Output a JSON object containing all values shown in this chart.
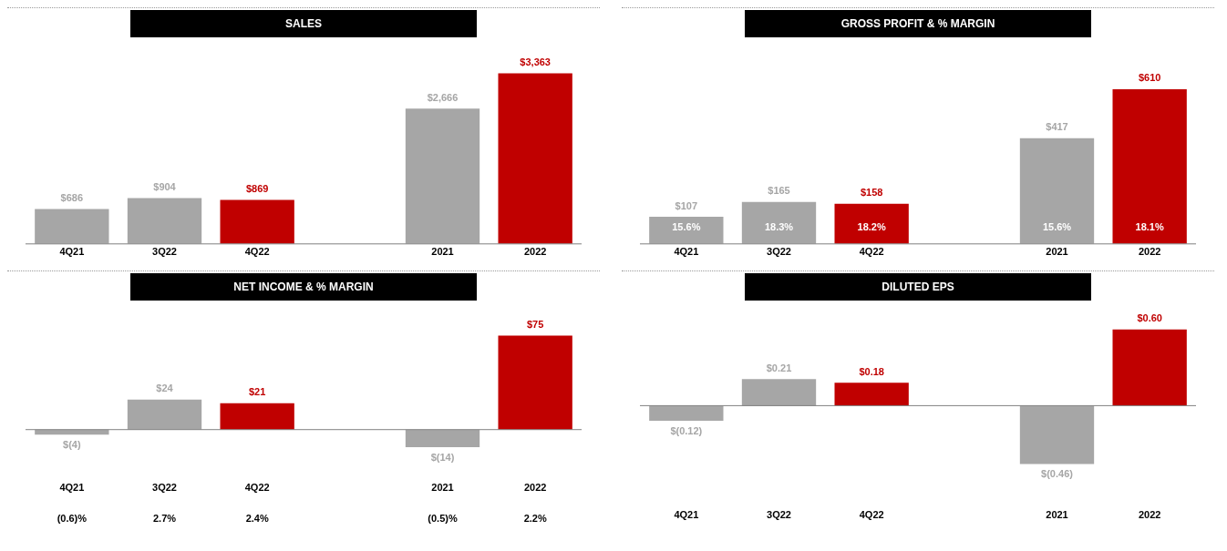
{
  "chart_data": [
    {
      "type": "bar",
      "title": "SALES",
      "categories": [
        "4Q21",
        "3Q22",
        "4Q22",
        null,
        "2021",
        "2022"
      ],
      "values": [
        686,
        904,
        869,
        null,
        2666,
        3363
      ],
      "colors": [
        "#a6a6a6",
        "#a6a6a6",
        "#c00000",
        "#a6a6a6",
        "#a6a6a6",
        "#c00000"
      ],
      "value_labels": [
        "$686",
        "$904",
        "$869",
        null,
        "$2,666",
        "$3,363"
      ],
      "grid": false,
      "legend": false,
      "tick_labels": "x"
    },
    {
      "type": "bar",
      "title": "GROSS PROFIT & % MARGIN",
      "categories": [
        "4Q21",
        "3Q22",
        "4Q22",
        null,
        "2021",
        "2022"
      ],
      "values": [
        107,
        165,
        158,
        null,
        417,
        610
      ],
      "colors": [
        "#a6a6a6",
        "#a6a6a6",
        "#c00000",
        "#a6a6a6",
        "#a6a6a6",
        "#c00000"
      ],
      "value_labels": [
        "$107",
        "$165",
        "$158",
        null,
        "$417",
        "$610"
      ],
      "annotations": [
        "15.6%",
        "18.3%",
        "18.2%",
        "15.6%",
        "18.1%"
      ],
      "grid": false,
      "legend": false,
      "tick_labels": "x"
    },
    {
      "type": "bar",
      "title": "NET INCOME & % MARGIN",
      "categories": [
        "4Q21",
        "3Q22",
        "4Q22",
        null,
        "2021",
        "2022"
      ],
      "values": [
        -4,
        24,
        21,
        null,
        -14,
        75
      ],
      "colors": [
        "#a6a6a6",
        "#a6a6a6",
        "#c00000",
        "#a6a6a6",
        "#a6a6a6",
        "#c00000"
      ],
      "value_labels": [
        "$(4)",
        "$24",
        "$21",
        null,
        "$(14)",
        "$75"
      ],
      "annotations": [
        "(0.6)%",
        "2.7%",
        "2.4%",
        "(0.5)%",
        "2.2%"
      ],
      "grid": false,
      "legend": false,
      "tick_labels": "x"
    },
    {
      "type": "bar",
      "title": "DILUTED EPS",
      "categories": [
        "4Q21",
        "3Q22",
        "4Q22",
        null,
        "2021",
        "2022"
      ],
      "values": [
        -0.12,
        0.21,
        0.18,
        null,
        -0.46,
        0.6
      ],
      "colors": [
        "#a6a6a6",
        "#a6a6a6",
        "#c00000",
        "#a6a6a6",
        "#a6a6a6",
        "#c00000"
      ],
      "value_labels": [
        "$(0.12)",
        "$0.21",
        "$0.18",
        null,
        "$(0.46)",
        "$0.60"
      ],
      "grid": false,
      "legend": false,
      "tick_labels": "x"
    }
  ]
}
